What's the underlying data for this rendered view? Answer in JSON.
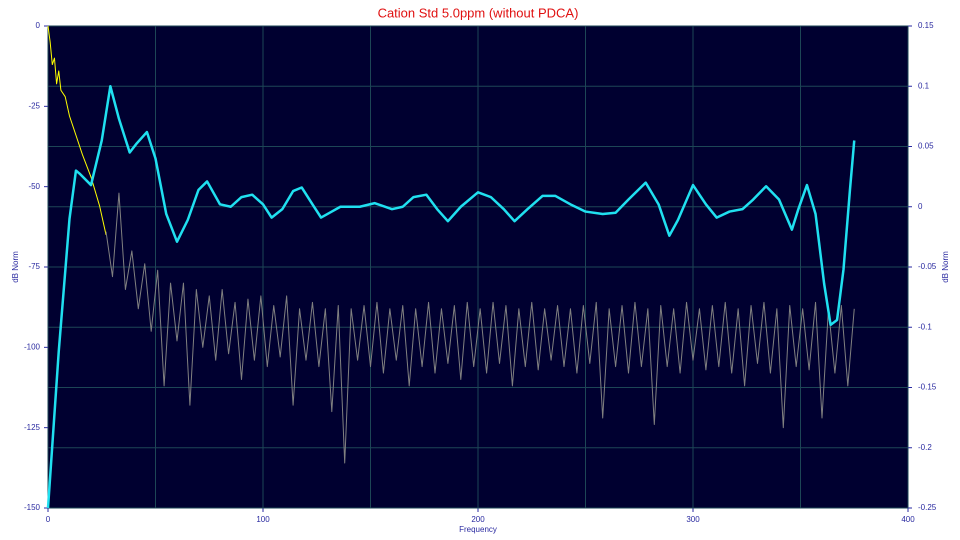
{
  "chart_data": {
    "type": "line",
    "title": "Cation Std 5.0ppm  (without PDCA)",
    "x_label": "Frequency",
    "y_label": "dB Norm",
    "y2_label": "dB Norm",
    "xlim": [
      0,
      400
    ],
    "xticks": [
      0,
      100,
      200,
      300,
      400
    ],
    "ylim": [
      -150,
      0
    ],
    "yticks": [
      0,
      -25,
      -50,
      -75,
      -100,
      -125,
      -150
    ],
    "y2lim": [
      -0.25,
      0.15
    ],
    "y2ticks": [
      0.15,
      0.1,
      0.05,
      0,
      -0.05,
      -0.1,
      -0.15,
      -0.2,
      -0.25
    ],
    "grid": true,
    "series": [
      {
        "color": "#ffff00",
        "x": [
          0,
          1,
          2,
          3,
          4,
          5,
          6,
          8,
          10,
          13,
          16,
          20,
          24,
          27
        ],
        "values": [
          0,
          -5,
          -12,
          -10,
          -18,
          -14,
          -20,
          -22,
          -28,
          -34,
          -40,
          -47,
          -56,
          -65
        ]
      },
      {
        "color": "#808080",
        "x": [
          27,
          30,
          33,
          36,
          39,
          42,
          45,
          48,
          51,
          54,
          57,
          60,
          63,
          66,
          69,
          72,
          75,
          78,
          81,
          84,
          87,
          90,
          93,
          96,
          99,
          102,
          105,
          108,
          111,
          114,
          117,
          120,
          123,
          126,
          129,
          132,
          135,
          138,
          141,
          144,
          147,
          150,
          153,
          156,
          159,
          162,
          165,
          168,
          171,
          174,
          177,
          180,
          183,
          186,
          189,
          192,
          195,
          198,
          201,
          204,
          207,
          210,
          213,
          216,
          219,
          222,
          225,
          228,
          231,
          234,
          237,
          240,
          243,
          246,
          249,
          252,
          255,
          258,
          261,
          264,
          267,
          270,
          273,
          276,
          279,
          282,
          285,
          288,
          291,
          294,
          297,
          300,
          303,
          306,
          309,
          312,
          315,
          318,
          321,
          324,
          327,
          330,
          333,
          336,
          339,
          342,
          345,
          348,
          351,
          354,
          357,
          360,
          363,
          366,
          369,
          372,
          375
        ],
        "values": [
          -64,
          -78,
          -52,
          -82,
          -70,
          -88,
          -74,
          -95,
          -76,
          -112,
          -80,
          -98,
          -80,
          -118,
          -82,
          -100,
          -84,
          -104,
          -82,
          -102,
          -86,
          -110,
          -85,
          -104,
          -84,
          -106,
          -87,
          -103,
          -84,
          -118,
          -88,
          -104,
          -86,
          -106,
          -88,
          -120,
          -87,
          -136,
          -88,
          -104,
          -87,
          -106,
          -86,
          -108,
          -88,
          -104,
          -87,
          -112,
          -88,
          -106,
          -86,
          -108,
          -88,
          -105,
          -87,
          -110,
          -86,
          -106,
          -88,
          -108,
          -86,
          -105,
          -87,
          -112,
          -88,
          -106,
          -86,
          -107,
          -88,
          -104,
          -87,
          -106,
          -88,
          -108,
          -87,
          -105,
          -86,
          -122,
          -88,
          -106,
          -87,
          -108,
          -86,
          -106,
          -88,
          -124,
          -87,
          -106,
          -88,
          -108,
          -86,
          -104,
          -88,
          -107,
          -87,
          -106,
          -86,
          -108,
          -88,
          -112,
          -87,
          -105,
          -86,
          -108,
          -88,
          -125,
          -87,
          -106,
          -88,
          -107,
          -86,
          -122,
          -88,
          -108,
          -87,
          -112,
          -88
        ]
      },
      {
        "color": "#20e0f0",
        "axis": "y2",
        "x": [
          0,
          5,
          10,
          13,
          15,
          20,
          25,
          29,
          33,
          38,
          41,
          46,
          50,
          55,
          60,
          65,
          70,
          74,
          80,
          85,
          90,
          95,
          100,
          104,
          109,
          114,
          118,
          123,
          127,
          132,
          136,
          145,
          152,
          160,
          165,
          170,
          176,
          181,
          186,
          192,
          200,
          206,
          212,
          217,
          223,
          230,
          236,
          243,
          250,
          258,
          264,
          270,
          278,
          284,
          289,
          293,
          300,
          306,
          311,
          317,
          323,
          328,
          334,
          340,
          346,
          349,
          353,
          357,
          361,
          364,
          367,
          370,
          373,
          375
        ],
        "values": [
          -0.25,
          -0.12,
          -0.01,
          0.03,
          0.027,
          0.018,
          0.055,
          0.1,
          0.073,
          0.045,
          0.052,
          0.062,
          0.04,
          -0.006,
          -0.029,
          -0.011,
          0.014,
          0.021,
          0.002,
          0,
          0.008,
          0.01,
          0.002,
          -0.009,
          -0.002,
          0.013,
          0.016,
          0.002,
          -0.009,
          -0.004,
          0,
          0,
          0.003,
          -0.002,
          0,
          0.008,
          0.01,
          -0.002,
          -0.012,
          0,
          0.012,
          0.008,
          -0.002,
          -0.012,
          -0.002,
          0.009,
          0.009,
          0.002,
          -0.004,
          -0.006,
          -0.005,
          0.006,
          0.02,
          0.002,
          -0.024,
          -0.011,
          0.018,
          0.002,
          -0.009,
          -0.004,
          -0.002,
          0.006,
          0.017,
          0.006,
          -0.019,
          -0.002,
          0.018,
          -0.006,
          -0.064,
          -0.098,
          -0.094,
          -0.052,
          0.014,
          0.055
        ]
      }
    ]
  }
}
